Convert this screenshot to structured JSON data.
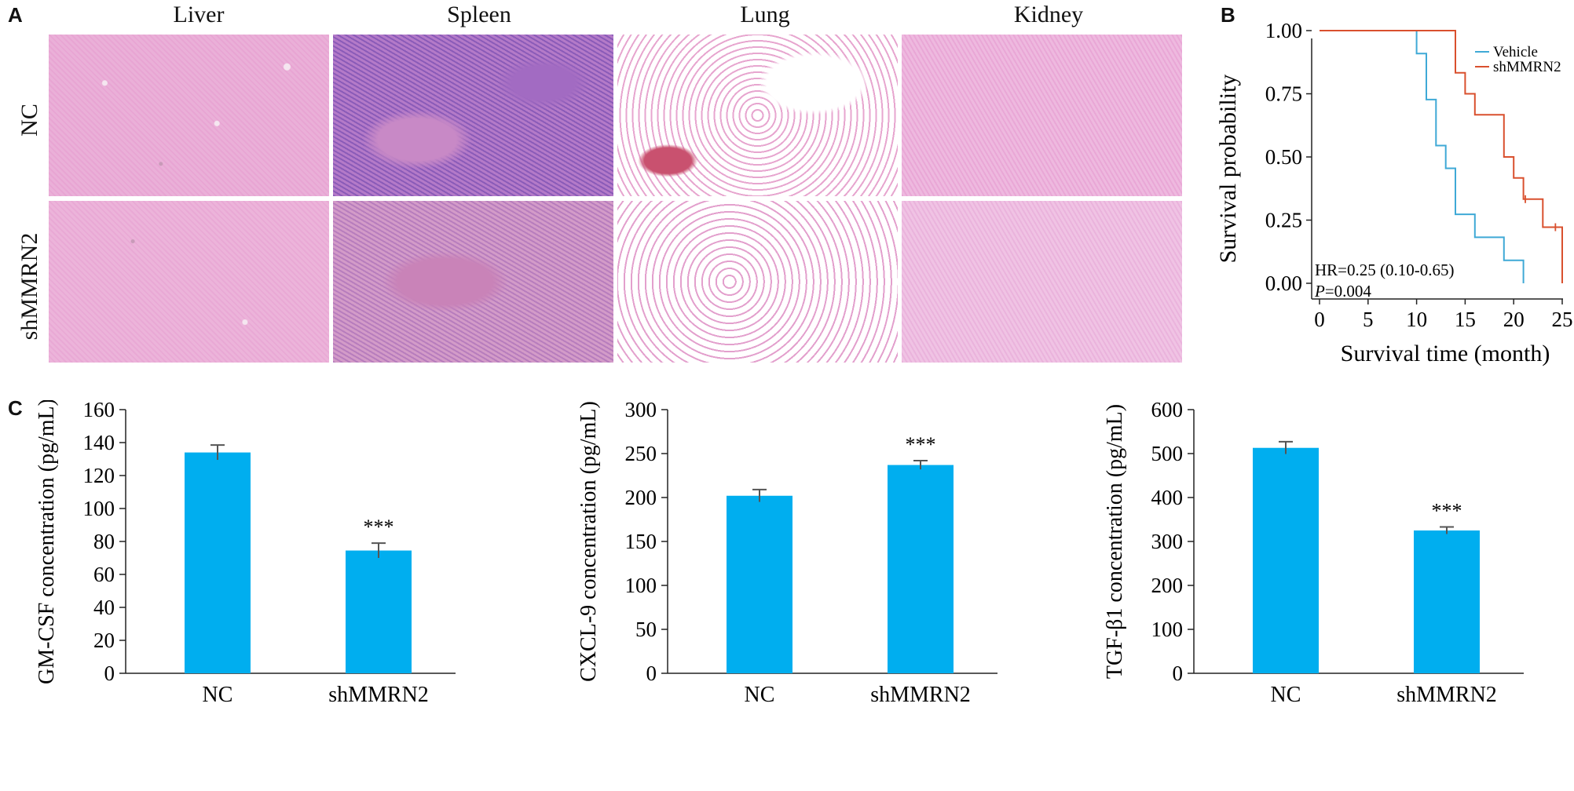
{
  "panel_labels": {
    "a": "A",
    "b": "B",
    "c": "C"
  },
  "panel_a": {
    "columns": [
      "Liver",
      "Spleen",
      "Lung",
      "Kidney"
    ],
    "rows": [
      "NC",
      "shMMRN2"
    ]
  },
  "chart_data": [
    {
      "type": "line",
      "subtype": "kaplan-meier",
      "xlabel": "Survival time (month)",
      "ylabel": "Survival probability",
      "xlim": [
        0,
        25
      ],
      "ylim": [
        0,
        1
      ],
      "xticks": [
        "0",
        "5",
        "10",
        "15",
        "20",
        "25"
      ],
      "yticks": [
        "0.00",
        "0.25",
        "0.50",
        "0.75",
        "1.00"
      ],
      "legend_position": "top-right",
      "annotations": [
        "HR=0.25 (0.10-0.65)",
        "P",
        "=0.004"
      ],
      "series": [
        {
          "name": "Vehicle",
          "color": "#3fa9d6",
          "steps": [
            [
              0,
              1.0
            ],
            [
              10,
              1.0
            ],
            [
              10,
              0.909
            ],
            [
              11,
              0.909
            ],
            [
              11,
              0.727
            ],
            [
              12,
              0.727
            ],
            [
              12,
              0.545
            ],
            [
              13,
              0.545
            ],
            [
              13,
              0.455
            ],
            [
              14,
              0.455
            ],
            [
              14,
              0.273
            ],
            [
              16,
              0.273
            ],
            [
              16,
              0.182
            ],
            [
              19,
              0.182
            ],
            [
              19,
              0.091
            ],
            [
              21,
              0.091
            ],
            [
              21,
              0.0
            ]
          ],
          "censored": []
        },
        {
          "name": "shMMRN2",
          "color": "#d9502e",
          "steps": [
            [
              0,
              1.0
            ],
            [
              14,
              1.0
            ],
            [
              14,
              0.833
            ],
            [
              15,
              0.833
            ],
            [
              15,
              0.75
            ],
            [
              16,
              0.75
            ],
            [
              16,
              0.667
            ],
            [
              19,
              0.667
            ],
            [
              19,
              0.5
            ],
            [
              20,
              0.5
            ],
            [
              20,
              0.417
            ],
            [
              21,
              0.417
            ],
            [
              21,
              0.333
            ],
            [
              23,
              0.333
            ],
            [
              23,
              0.222
            ],
            [
              25,
              0.222
            ],
            [
              25,
              0.0
            ]
          ],
          "censored": [
            [
              21.2,
              0.333
            ],
            [
              24.3,
              0.222
            ]
          ]
        }
      ]
    },
    {
      "type": "bar",
      "categories": [
        "NC",
        "shMMRN2"
      ],
      "values": [
        134,
        74.5
      ],
      "errors": [
        4.5,
        4.5
      ],
      "significance": [
        "",
        "***"
      ],
      "ylabel": "GM-CSF concentration (pg/mL)",
      "ylim": [
        0,
        160
      ],
      "yticks": [
        "0",
        "20",
        "40",
        "60",
        "80",
        "100",
        "120",
        "140",
        "160"
      ],
      "color": "#00aeef"
    },
    {
      "type": "bar",
      "categories": [
        "NC",
        "shMMRN2"
      ],
      "values": [
        202,
        237
      ],
      "errors": [
        7,
        5
      ],
      "significance": [
        "",
        "***"
      ],
      "ylabel": "CXCL-9 concentration (pg/mL)",
      "ylim": [
        0,
        300
      ],
      "yticks": [
        "0",
        "50",
        "100",
        "150",
        "200",
        "250",
        "300"
      ],
      "color": "#00aeef"
    },
    {
      "type": "bar",
      "categories": [
        "NC",
        "shMMRN2"
      ],
      "values": [
        513,
        325
      ],
      "errors": [
        14,
        8
      ],
      "significance": [
        "",
        "***"
      ],
      "ylabel": "TGF-β1 concentration (pg/mL)",
      "ylim": [
        0,
        600
      ],
      "yticks": [
        "0",
        "100",
        "200",
        "300",
        "400",
        "500",
        "600"
      ],
      "color": "#00aeef"
    }
  ]
}
